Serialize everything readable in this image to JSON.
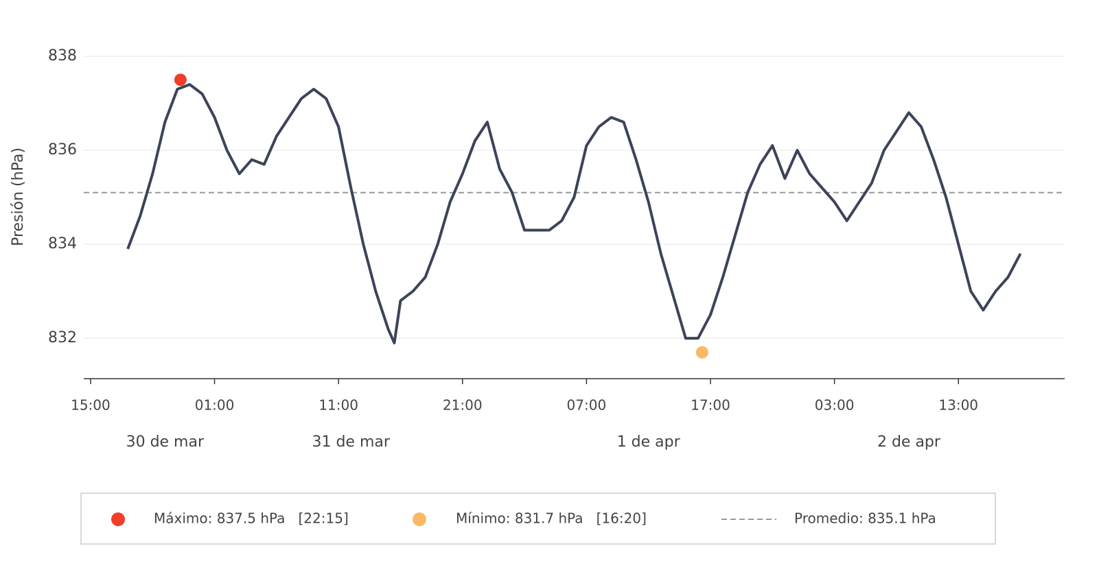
{
  "chart_data": {
    "type": "line",
    "y_label": "Presión (hPa)",
    "xlim": [
      -0.55,
      78.57
    ],
    "ylim": [
      831.14,
      838.76
    ],
    "xticks": [
      {
        "value": 0,
        "label": "15:00"
      },
      {
        "value": 10,
        "label": "01:00"
      },
      {
        "value": 20,
        "label": "11:00"
      },
      {
        "value": 30,
        "label": "21:00"
      },
      {
        "value": 40,
        "label": "07:00"
      },
      {
        "value": 50,
        "label": "17:00"
      },
      {
        "value": 60,
        "label": "03:00"
      },
      {
        "value": 70,
        "label": "13:00"
      }
    ],
    "date_ticks": [
      {
        "value": 6,
        "label": "30 de mar"
      },
      {
        "value": 21,
        "label": "31 de mar"
      },
      {
        "value": 45,
        "label": "1 de apr"
      },
      {
        "value": 66,
        "label": "2 de apr"
      }
    ],
    "yticks": [
      832,
      834,
      836,
      838
    ],
    "grid": true,
    "x": [
      3,
      4,
      5,
      6,
      7,
      8,
      9,
      10,
      11,
      12,
      13,
      14,
      15,
      16,
      17,
      18,
      19,
      20,
      21,
      22,
      23,
      24,
      24.5,
      25,
      26,
      27,
      28,
      29,
      30,
      31,
      32,
      33,
      34,
      35,
      36,
      37,
      38,
      39,
      40,
      41,
      42,
      43,
      44,
      45,
      46,
      47,
      48,
      49,
      50,
      51,
      52,
      53,
      54,
      55,
      56,
      57,
      58,
      59,
      60,
      61,
      62,
      63,
      64,
      65,
      66,
      67,
      68,
      69,
      70,
      71,
      72,
      73,
      74,
      75
    ],
    "series": [
      {
        "color": "#3d4459",
        "values": [
          833.9,
          834.6,
          835.5,
          836.6,
          837.3,
          837.4,
          837.2,
          836.7,
          836.0,
          835.5,
          835.8,
          835.7,
          836.3,
          836.7,
          837.1,
          837.3,
          837.1,
          836.5,
          835.2,
          834.0,
          833.0,
          832.2,
          831.9,
          832.8,
          833.0,
          833.3,
          834.0,
          834.9,
          835.5,
          836.2,
          836.6,
          835.6,
          835.1,
          834.3,
          834.3,
          834.3,
          834.5,
          835.0,
          836.1,
          836.5,
          836.7,
          836.6,
          835.8,
          834.9,
          833.8,
          832.9,
          832.0,
          832.0,
          832.5,
          833.3,
          834.2,
          835.1,
          835.7,
          836.1,
          835.4,
          836.0,
          835.5,
          835.2,
          834.9,
          834.5,
          834.9,
          835.3,
          836.0,
          836.4,
          836.8,
          836.5,
          835.8,
          835.0,
          834.0,
          833.0,
          832.6,
          833.0,
          833.3,
          833.8
        ]
      }
    ],
    "maximum": {
      "x": 7.25,
      "y": 837.5,
      "color": "#f03e2a",
      "label": "Máximo: 837.5 hPa   [22:15]"
    },
    "minimum": {
      "x": 49.33,
      "y": 831.7,
      "color": "#fdb863",
      "label": "Mínimo: 831.7 hPa   [16:20]"
    },
    "mean": {
      "value": 835.1,
      "color": "#999999",
      "label": "Promedio: 835.1 hPa"
    }
  }
}
